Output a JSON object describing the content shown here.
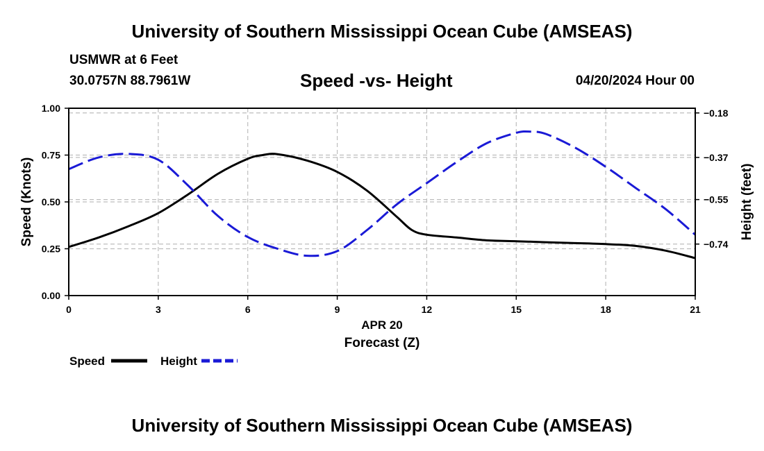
{
  "page": {
    "top_title": "University of Southern Mississippi Ocean Cube (AMSEAS)",
    "bottom_title": "University of Southern Mississippi Ocean Cube (AMSEAS)",
    "station": "USMWR at 6 Feet",
    "coords": "30.0757N  88.7961W",
    "date": "04/20/2024 Hour 00"
  },
  "chart_data": {
    "type": "line",
    "title": "Speed -vs- Height",
    "xlabel_date": "APR 20",
    "xlabel": "Forecast (Z)",
    "ylabel_left": "Speed (Knots)",
    "ylabel_right": "Height (feet)",
    "x_ticks": [
      0,
      3,
      6,
      9,
      12,
      15,
      18,
      21
    ],
    "x_tick_labels": [
      "0",
      "3",
      "6",
      "9",
      "12",
      "15",
      "18",
      "21"
    ],
    "xlim": [
      0,
      21
    ],
    "ylim_left": [
      0,
      1
    ],
    "left_ticks": [
      0,
      0.25,
      0.5,
      0.75,
      1.0
    ],
    "left_tick_labels": [
      "0.00",
      "0.25",
      "0.50",
      "0.75",
      "1.00"
    ],
    "ylim_right": [
      -0.96,
      -0.16
    ],
    "right_ticks": [
      -0.18,
      -0.37,
      -0.55,
      -0.74
    ],
    "right_tick_labels": [
      "-0.18",
      "-0.37",
      "-0.55",
      "-0.74"
    ],
    "grid": true,
    "series": [
      {
        "name": "Speed",
        "axis": "left",
        "color": "#000000",
        "dash": "solid",
        "x": [
          0,
          1,
          2,
          3,
          4,
          5,
          6,
          6.5,
          7,
          8,
          9,
          10,
          11,
          11.5,
          12,
          13,
          14,
          15,
          16,
          17,
          18,
          19,
          20,
          21
        ],
        "values": [
          0.26,
          0.31,
          0.37,
          0.44,
          0.54,
          0.65,
          0.73,
          0.75,
          0.755,
          0.72,
          0.66,
          0.56,
          0.42,
          0.35,
          0.325,
          0.31,
          0.295,
          0.29,
          0.285,
          0.28,
          0.275,
          0.265,
          0.24,
          0.2
        ]
      },
      {
        "name": "Height",
        "axis": "right",
        "color": "#1a1ad6",
        "dash": "dashed",
        "x": [
          0,
          1,
          2,
          3,
          4,
          5,
          6,
          7,
          8,
          9,
          10,
          11,
          12,
          13,
          14,
          15,
          15.5,
          16,
          17,
          18,
          19,
          20,
          21
        ],
        "values": [
          -0.42,
          -0.37,
          -0.355,
          -0.38,
          -0.49,
          -0.62,
          -0.71,
          -0.76,
          -0.79,
          -0.77,
          -0.68,
          -0.57,
          -0.48,
          -0.39,
          -0.31,
          -0.265,
          -0.26,
          -0.27,
          -0.33,
          -0.41,
          -0.5,
          -0.59,
          -0.7
        ]
      }
    ],
    "legend": {
      "position": "bottom-left",
      "entries": [
        "Speed",
        "Height"
      ]
    }
  }
}
